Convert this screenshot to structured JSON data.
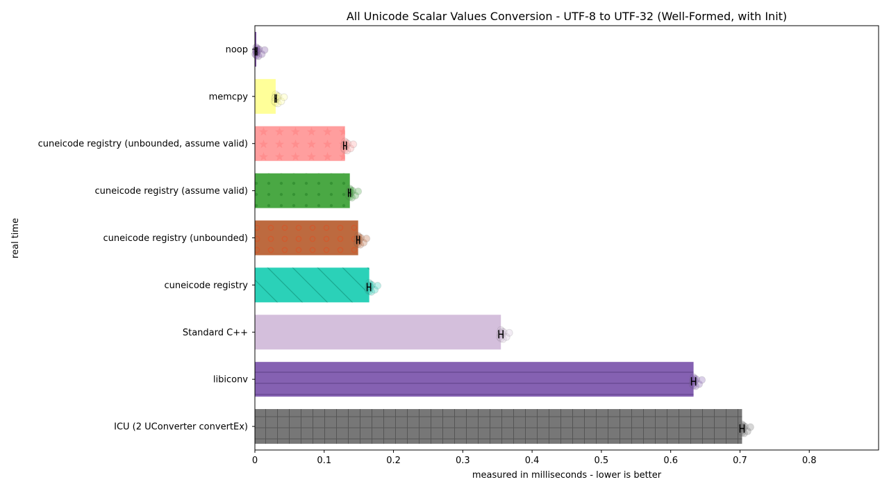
{
  "chart_data": {
    "type": "bar",
    "orientation": "horizontal",
    "title": "All Unicode Scalar Values Conversion - UTF-8 to UTF-32 (Well-Formed, with Init)",
    "xlabel": "measured in milliseconds - lower is better",
    "ylabel": "real time",
    "xlim": [
      0,
      0.9
    ],
    "xticks": [
      0,
      0.1,
      0.2,
      0.3,
      0.4,
      0.5,
      0.6,
      0.7,
      0.8
    ],
    "xtick_labels": [
      "0",
      "0.1",
      "0.2",
      "0.3",
      "0.4",
      "0.5",
      "0.6",
      "0.7",
      "0.8"
    ],
    "grid": false,
    "legend": "none",
    "categories": [
      "noop",
      "memcpy",
      "cuneicode registry (unbounded, assume valid)",
      "cuneicode registry (assume valid)",
      "cuneicode registry (unbounded)",
      "cuneicode registry",
      "Standard C++",
      "libiconv",
      "ICU (2 UConverter convertEx)"
    ],
    "values": [
      0.002,
      0.03,
      0.13,
      0.137,
      0.149,
      0.165,
      0.355,
      0.633,
      0.703
    ],
    "error_low": [
      0.001,
      0.029,
      0.128,
      0.135,
      0.147,
      0.162,
      0.352,
      0.63,
      0.7
    ],
    "error_high": [
      0.003,
      0.031,
      0.132,
      0.138,
      0.151,
      0.167,
      0.358,
      0.636,
      0.706
    ],
    "colors": [
      "#7b4fa1",
      "#ffff99",
      "#ff9e9e",
      "#4aa844",
      "#bd6a3f",
      "#2bd1b8",
      "#d4bfdc",
      "#8561b2",
      "#777777"
    ],
    "hatches": [
      "none",
      "none",
      "stars",
      "dots",
      "circles",
      "diagonal",
      "none",
      "horizontal",
      "grid"
    ]
  }
}
